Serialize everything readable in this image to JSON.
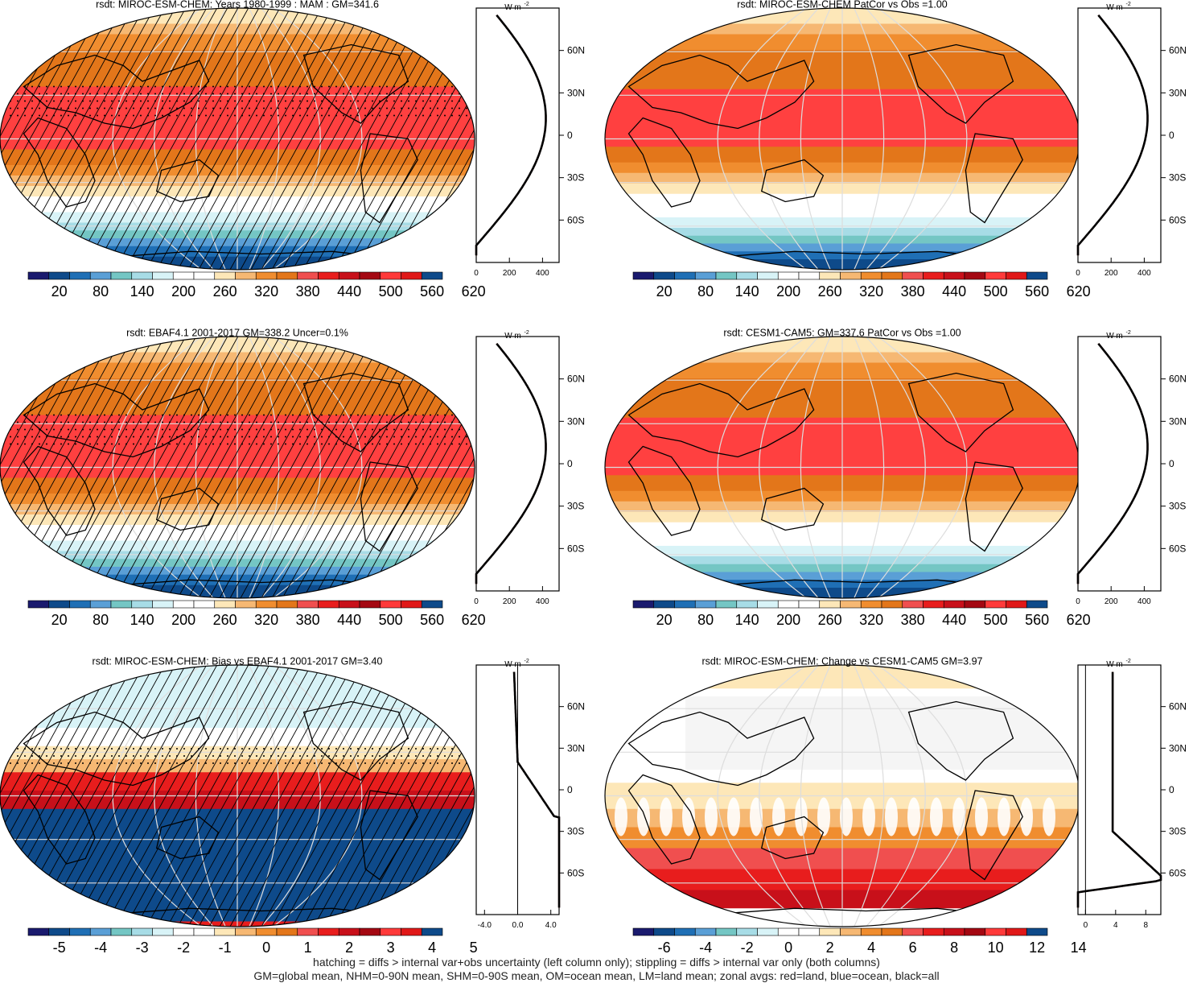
{
  "colors": {
    "abs": [
      "#1a1a6e",
      "#0e4a8a",
      "#1f6fb5",
      "#5a9fd6",
      "#74c6c4",
      "#a7dce6",
      "#d8f3f7",
      "#ffffff",
      "#ffffff",
      "#fde7b8",
      "#f6b873",
      "#f08d2f",
      "#e3761a",
      "#f04f4f",
      "#e81d1d",
      "#c8101a",
      "#a40812",
      "#ff3a3a",
      "#e01818",
      "#0e4a8a"
    ],
    "diff": [
      "#1a1a6e",
      "#0e4a8a",
      "#1f6fb5",
      "#5a9fd6",
      "#74c6c4",
      "#a7dce6",
      "#d8f3f7",
      "#ffffff",
      "#ffffff",
      "#fde7b8",
      "#f6b873",
      "#f08d2f",
      "#e3761a",
      "#f04f4f",
      "#e81d1d",
      "#c8101a",
      "#a40812",
      "#ff3a3a",
      "#e01818",
      "#0e4a8a"
    ]
  },
  "chart_data": [
    {
      "type": "heatmap",
      "title": "rsdt: MIROC-ESM-CHEM: Years 1980-1999 : MAM : GM=341.6",
      "colorbar_labels": [
        "20",
        "80",
        "140",
        "200",
        "260",
        "320",
        "380",
        "440",
        "500",
        "560",
        "620"
      ],
      "hatching": true,
      "stippling": true,
      "zonal": {
        "unit_label": "W m-2",
        "xlim": [
          0,
          500
        ],
        "xtick_labels": [
          "0",
          "200",
          "400"
        ],
        "lat_labels": [
          "60N",
          "30N",
          "0",
          "30S",
          "60S"
        ]
      }
    },
    {
      "type": "heatmap",
      "title": "rsdt: MIROC-ESM-CHEM PatCor vs Obs =1.00",
      "colorbar_labels": [
        "20",
        "80",
        "140",
        "200",
        "260",
        "320",
        "380",
        "440",
        "500",
        "560",
        "620"
      ],
      "hatching": false,
      "stippling": false,
      "zonal": {
        "unit_label": "W m-2",
        "xlim": [
          0,
          500
        ],
        "xtick_labels": [
          "0",
          "200",
          "400"
        ],
        "lat_labels": [
          "60N",
          "30N",
          "0",
          "30S",
          "60S"
        ]
      }
    },
    {
      "type": "heatmap",
      "title": "rsdt: EBAF4.1 2001-2017 GM=338.2 Uncer=0.1%",
      "colorbar_labels": [
        "20",
        "80",
        "140",
        "200",
        "260",
        "320",
        "380",
        "440",
        "500",
        "560",
        "620"
      ],
      "hatching": true,
      "stippling": true,
      "zonal": {
        "unit_label": "W m-2",
        "xlim": [
          0,
          500
        ],
        "xtick_labels": [
          "0",
          "200",
          "400"
        ],
        "lat_labels": [
          "60N",
          "30N",
          "0",
          "30S",
          "60S"
        ]
      }
    },
    {
      "type": "heatmap",
      "title": "rsdt: CESM1-CAM5: GM=337.6 PatCor vs Obs =1.00",
      "colorbar_labels": [
        "20",
        "80",
        "140",
        "200",
        "260",
        "320",
        "380",
        "440",
        "500",
        "560",
        "620"
      ],
      "hatching": false,
      "stippling": false,
      "zonal": {
        "unit_label": "W m-2",
        "xlim": [
          0,
          500
        ],
        "xtick_labels": [
          "0",
          "200",
          "400"
        ],
        "lat_labels": [
          "60N",
          "30N",
          "0",
          "30S",
          "60S"
        ]
      }
    },
    {
      "type": "heatmap",
      "title": "rsdt: MIROC-ESM-CHEM: Bias vs EBAF4.1 2001-2017 GM=3.40",
      "colorbar_labels": [
        "-5",
        "-4",
        "-3",
        "-2",
        "-1",
        "0",
        "1",
        "2",
        "3",
        "4",
        "5"
      ],
      "hatching": true,
      "stippling": true,
      "zonal": {
        "unit_label": "W m-2",
        "xlim": [
          -5,
          5
        ],
        "xtick_labels": [
          "-4.0",
          "0.0",
          "4.0"
        ],
        "lat_labels": [
          "60N",
          "30N",
          "0",
          "30S",
          "60S"
        ]
      }
    },
    {
      "type": "heatmap",
      "title": "rsdt: MIROC-ESM-CHEM: Change vs CESM1-CAM5 GM=3.97",
      "colorbar_labels": [
        "-6",
        "-4",
        "-2",
        "0",
        "2",
        "4",
        "6",
        "8",
        "10",
        "12",
        "14"
      ],
      "hatching": false,
      "stippling": false,
      "zonal": {
        "unit_label": "W m-2",
        "xlim": [
          -1,
          10
        ],
        "xtick_labels": [
          "0",
          "4",
          "8"
        ],
        "lat_labels": [
          "60N",
          "30N",
          "0",
          "30S",
          "60S"
        ]
      }
    }
  ],
  "footer": {
    "line1": "hatching = diffs > internal var+obs uncertainty (left column only); stippling = diffs > internal var only (both columns)",
    "line2": "GM=global mean, NHM=0-90N mean, SHM=0-90S mean, OM=ocean mean, LM=land mean; zonal avgs: red=land, blue=ocean, black=all"
  }
}
